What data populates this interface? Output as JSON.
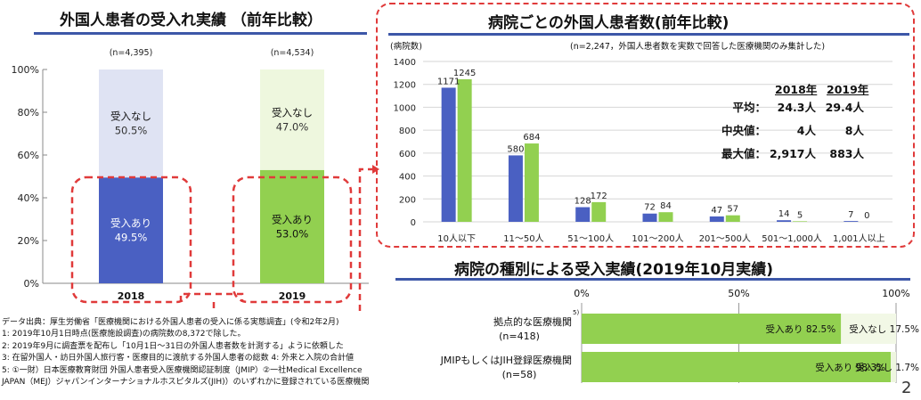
{
  "left_panel": {
    "title": "外国人患者の受入れ実績 （前年比較）"
  },
  "right_top": {
    "title": "病院ごとの外国人患者数(前年比較)",
    "note": "(n=2,247，外国人患者数を実数で回答した医療機関のみ集計した)",
    "stats": {
      "headers": [
        "2018年",
        "2019年"
      ],
      "rows": [
        {
          "label": "平均：",
          "v2018": "24.3人",
          "v2019": "29.4人"
        },
        {
          "label": "中央値：",
          "v2018": "4人",
          "v2019": "8人"
        },
        {
          "label": "最大値：",
          "v2018": "2,917人",
          "v2019": "883人"
        }
      ]
    }
  },
  "right_bottom": {
    "title": "病院の種別による受入実績(2019年10月実績)"
  },
  "footnotes": [
    "データ出典：厚生労働省「医療機関における外国人患者の受入に係る実態調査」(令和2年2月)",
    "1: 2019年10月1日時点(医療施設調査)の病院数の8,372で除した。",
    "2: 2019年9月に調査票を配布し「10月1日～31日の外国人患者数を計測する」ように依頼した",
    "3: 在留外国人・訪日外国人旅行客・医療目的に渡航する外国人患者の総数   4: 外来と入院の合計値",
    "5: ①一財）日本医療教育財団  外国人患者受入医療機関認証制度（JMIP）②一社Medical Excellence",
    "JAPAN（MEJ）ジャパンインターナショナルホスピタルズ(JIH)）のいずれかに登録されている医療機関"
  ],
  "page_number": "2",
  "colors": {
    "blue": "#4a60c2",
    "green": "#92d050",
    "lavender": "#dfe3f3",
    "pale_green": "#eef7de",
    "red": "#e03a3a",
    "rule": "#3d57a8"
  },
  "chart_data": [
    {
      "type": "bar",
      "stacked": true,
      "categories": [
        "2018",
        "2019"
      ],
      "n_labels": [
        "(n=4,395)",
        "(n=4,534)"
      ],
      "series": [
        {
          "name": "受入あり",
          "values": [
            49.5,
            53.0
          ],
          "labels": [
            "49.5%",
            "53.0%"
          ]
        },
        {
          "name": "受入なし",
          "values": [
            50.5,
            47.0
          ],
          "labels": [
            "50.5%",
            "47.0%"
          ]
        }
      ],
      "yticks": [
        "0%",
        "20%",
        "40%",
        "60%",
        "80%",
        "100%"
      ],
      "ylim": [
        0,
        100
      ]
    },
    {
      "type": "bar",
      "ylabel": "(病院数)",
      "categories": [
        "10人以下",
        "11～50人",
        "51～100人",
        "101～200人",
        "201～500人",
        "501～1,000人",
        "1,001人以上"
      ],
      "series": [
        {
          "name": "2018年",
          "values": [
            1171,
            580,
            128,
            72,
            47,
            14,
            7
          ]
        },
        {
          "name": "2019年",
          "values": [
            1245,
            684,
            172,
            84,
            57,
            5,
            0
          ]
        }
      ],
      "yticks": [
        "0",
        "200",
        "400",
        "600",
        "800",
        "1000",
        "1200",
        "1400"
      ],
      "ylim": [
        0,
        1400
      ]
    },
    {
      "type": "bar",
      "orientation": "horizontal",
      "stacked": true,
      "categories": [
        "拠点的な医療機関",
        "JMIPもしくはJIH登録医療機関"
      ],
      "category_sup": [
        "5)",
        ""
      ],
      "n_labels": [
        "(n=418)",
        "(n=58)"
      ],
      "series": [
        {
          "name": "受入あり",
          "values": [
            82.5,
            98.3
          ],
          "labels": [
            "受入あり 82.5%",
            "受入あり 98.3%"
          ]
        },
        {
          "name": "受入なし",
          "values": [
            17.5,
            1.7
          ],
          "labels": [
            "受入なし 17.5%",
            "受入なし 1.7%"
          ]
        }
      ],
      "xticks": [
        "0%",
        "50%",
        "100%"
      ],
      "xlim": [
        0,
        100
      ]
    }
  ]
}
